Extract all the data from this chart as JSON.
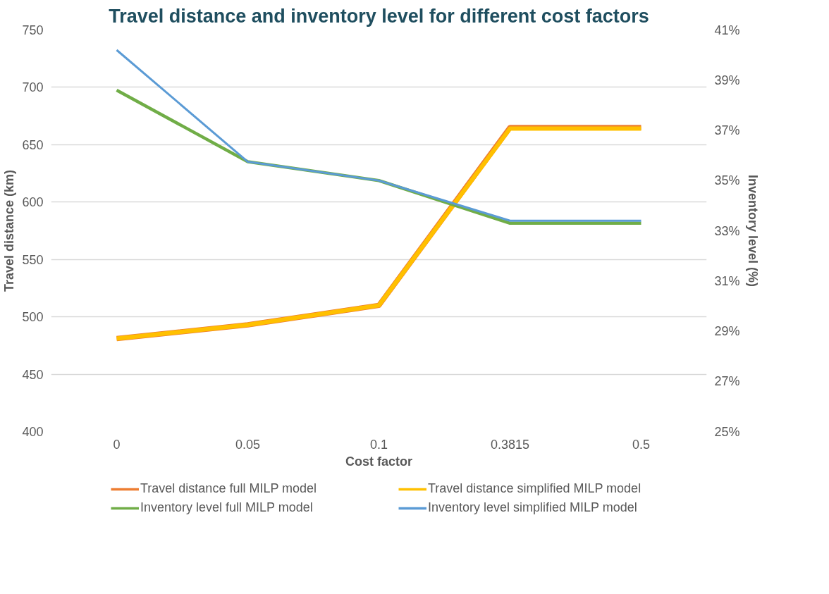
{
  "chart_data": {
    "type": "line",
    "title": "Travel distance and inventory level for different cost factors",
    "xlabel": "Cost factor",
    "ylabel": "Travel distance (km)",
    "y2label": "Inventory level (%)",
    "categories": [
      "0",
      "0.05",
      "0.1",
      "0.3815",
      "0.5"
    ],
    "series": [
      {
        "name": "Travel distance full MILP model",
        "color": "#ed7d31",
        "values": [
          481,
          493,
          510,
          665,
          665
        ]
      },
      {
        "name": "Travel distance simplified MILP model",
        "color": "#ffc000",
        "values": [
          481,
          493,
          510,
          664,
          664
        ]
      },
      {
        "name": "Inventory level full MILP model",
        "color": "#70ad47",
        "axis": "y2",
        "values": [
          38.6,
          35.75,
          35.0,
          33.3,
          33.3
        ]
      },
      {
        "name": "Inventory level simplified MILP model",
        "color": "#5b9bd5",
        "axis": "y2",
        "values": [
          40.2,
          35.75,
          35.0,
          33.4,
          33.4
        ]
      }
    ],
    "ylim": [
      400,
      750
    ],
    "yticks": [
      400,
      450,
      500,
      550,
      600,
      650,
      700,
      750
    ],
    "y2lim": [
      25,
      41
    ],
    "y2ticks": [
      {
        "value": 25,
        "label": "25%"
      },
      {
        "value": 27,
        "label": "27%"
      },
      {
        "value": 29,
        "label": "29%"
      },
      {
        "value": 31,
        "label": "31%"
      },
      {
        "value": 33,
        "label": "33%"
      },
      {
        "value": 35,
        "label": "35%"
      },
      {
        "value": 37,
        "label": "37%"
      },
      {
        "value": 39,
        "label": "39%"
      },
      {
        "value": 41,
        "label": "41%"
      }
    ],
    "grid": "y",
    "legend": "bottom",
    "marker": "none",
    "line_style": "solid"
  }
}
